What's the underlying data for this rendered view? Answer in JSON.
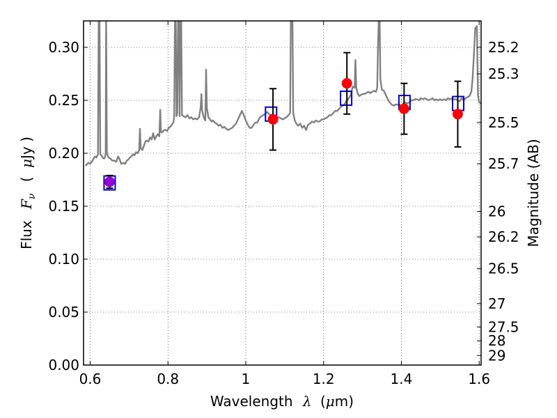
{
  "chart_data": {
    "type": "scatter",
    "xlabel": "Wavelength",
    "xlabel_symbol": "λ",
    "xlabel_unit_open": "(",
    "xlabel_unit_mu": "μ",
    "xlabel_unit_close": "m)",
    "ylabel": "Flux",
    "ylabel_symbol_F": "F",
    "ylabel_symbol_sub": "ν",
    "ylabel_unit_open": "(",
    "ylabel_unit_mu": "μ",
    "ylabel_unit_rest": "Jy )",
    "y2label": "Magnitude (AB)",
    "xlim": [
      0.583,
      1.605
    ],
    "ylim": [
      0.0,
      0.325
    ],
    "grid": true,
    "xticks": [
      {
        "value": 0.6,
        "label": "0.6"
      },
      {
        "value": 0.8,
        "label": "0.8"
      },
      {
        "value": 1.0,
        "label": "1"
      },
      {
        "value": 1.2,
        "label": "1.2"
      },
      {
        "value": 1.4,
        "label": "1.4"
      },
      {
        "value": 1.6,
        "label": "1.6"
      }
    ],
    "yticks": [
      {
        "value": 0.0,
        "label": "0.00"
      },
      {
        "value": 0.05,
        "label": "0.05"
      },
      {
        "value": 0.1,
        "label": "0.10"
      },
      {
        "value": 0.15,
        "label": "0.15"
      },
      {
        "value": 0.2,
        "label": "0.20"
      },
      {
        "value": 0.25,
        "label": "0.25"
      },
      {
        "value": 0.3,
        "label": "0.30"
      }
    ],
    "mag_ticks": [
      {
        "label": "25.2",
        "flux": 0.3
      },
      {
        "label": "25.3",
        "flux": 0.275
      },
      {
        "label": "25.5",
        "flux": 0.229
      },
      {
        "label": "25.7",
        "flux": 0.19
      },
      {
        "label": "26",
        "flux": 0.145
      },
      {
        "label": "26.2",
        "flux": 0.121
      },
      {
        "label": "26.5",
        "flux": 0.091
      },
      {
        "label": "27",
        "flux": 0.058
      },
      {
        "label": "27.5",
        "flux": 0.036
      },
      {
        "label": "28",
        "flux": 0.023
      },
      {
        "label": "29",
        "flux": 0.009
      }
    ],
    "series": [
      {
        "kind": "model_spectrum",
        "color": "#808080",
        "points": [
          [
            0.588,
            0.188
          ],
          [
            0.595,
            0.191
          ],
          [
            0.6,
            0.19
          ],
          [
            0.606,
            0.193
          ],
          [
            0.612,
            0.197
          ],
          [
            0.616,
            0.196
          ],
          [
            0.62,
            0.199
          ],
          [
            0.622,
            0.33
          ],
          [
            0.624,
            0.33
          ],
          [
            0.626,
            0.199
          ],
          [
            0.629,
            0.198
          ],
          [
            0.632,
            0.196
          ],
          [
            0.635,
            0.195
          ],
          [
            0.638,
            0.196
          ],
          [
            0.64,
            0.2
          ],
          [
            0.641,
            0.33
          ],
          [
            0.643,
            0.2
          ],
          [
            0.647,
            0.196
          ],
          [
            0.652,
            0.195
          ],
          [
            0.657,
            0.193
          ],
          [
            0.662,
            0.193
          ],
          [
            0.667,
            0.192
          ],
          [
            0.672,
            0.197
          ],
          [
            0.676,
            0.194
          ],
          [
            0.68,
            0.19
          ],
          [
            0.685,
            0.191
          ],
          [
            0.69,
            0.19
          ],
          [
            0.694,
            0.193
          ],
          [
            0.698,
            0.194
          ],
          [
            0.702,
            0.196
          ],
          [
            0.706,
            0.197
          ],
          [
            0.71,
            0.199
          ],
          [
            0.714,
            0.198
          ],
          [
            0.718,
            0.201
          ],
          [
            0.722,
            0.2
          ],
          [
            0.726,
            0.203
          ],
          [
            0.728,
            0.223
          ],
          [
            0.73,
            0.205
          ],
          [
            0.734,
            0.203
          ],
          [
            0.738,
            0.207
          ],
          [
            0.742,
            0.211
          ],
          [
            0.746,
            0.212
          ],
          [
            0.75,
            0.211
          ],
          [
            0.754,
            0.215
          ],
          [
            0.758,
            0.213
          ],
          [
            0.762,
            0.219
          ],
          [
            0.766,
            0.213
          ],
          [
            0.77,
            0.216
          ],
          [
            0.774,
            0.218
          ],
          [
            0.778,
            0.216
          ],
          [
            0.78,
            0.241
          ],
          [
            0.782,
            0.22
          ],
          [
            0.786,
            0.22
          ],
          [
            0.79,
            0.222
          ],
          [
            0.794,
            0.222
          ],
          [
            0.798,
            0.221
          ],
          [
            0.802,
            0.224
          ],
          [
            0.806,
            0.225
          ],
          [
            0.81,
            0.227
          ],
          [
            0.814,
            0.229
          ],
          [
            0.816,
            0.235
          ],
          [
            0.818,
            0.33
          ],
          [
            0.82,
            0.33
          ],
          [
            0.822,
            0.235
          ],
          [
            0.824,
            0.238
          ],
          [
            0.826,
            0.33
          ],
          [
            0.828,
            0.33
          ],
          [
            0.83,
            0.235
          ],
          [
            0.832,
            0.33
          ],
          [
            0.834,
            0.33
          ],
          [
            0.836,
            0.236
          ],
          [
            0.84,
            0.235
          ],
          [
            0.845,
            0.234
          ],
          [
            0.85,
            0.236
          ],
          [
            0.855,
            0.233
          ],
          [
            0.86,
            0.234
          ],
          [
            0.865,
            0.232
          ],
          [
            0.87,
            0.233
          ],
          [
            0.875,
            0.232
          ],
          [
            0.88,
            0.234
          ],
          [
            0.884,
            0.243
          ],
          [
            0.886,
            0.256
          ],
          [
            0.888,
            0.24
          ],
          [
            0.892,
            0.234
          ],
          [
            0.896,
            0.231
          ],
          [
            0.898,
            0.279
          ],
          [
            0.9,
            0.243
          ],
          [
            0.904,
            0.234
          ],
          [
            0.908,
            0.232
          ],
          [
            0.912,
            0.23
          ],
          [
            0.916,
            0.231
          ],
          [
            0.92,
            0.229
          ],
          [
            0.925,
            0.228
          ],
          [
            0.93,
            0.226
          ],
          [
            0.935,
            0.227
          ],
          [
            0.94,
            0.224
          ],
          [
            0.945,
            0.225
          ],
          [
            0.95,
            0.223
          ],
          [
            0.955,
            0.222
          ],
          [
            0.96,
            0.223
          ],
          [
            0.965,
            0.224
          ],
          [
            0.97,
            0.226
          ],
          [
            0.975,
            0.228
          ],
          [
            0.98,
            0.232
          ],
          [
            0.985,
            0.236
          ],
          [
            0.99,
            0.24
          ],
          [
            0.995,
            0.236
          ],
          [
            1.0,
            0.231
          ],
          [
            1.005,
            0.227
          ],
          [
            1.01,
            0.224
          ],
          [
            1.015,
            0.224
          ],
          [
            1.02,
            0.227
          ],
          [
            1.025,
            0.229
          ],
          [
            1.03,
            0.229
          ],
          [
            1.035,
            0.233
          ],
          [
            1.04,
            0.235
          ],
          [
            1.045,
            0.236
          ],
          [
            1.05,
            0.237
          ],
          [
            1.055,
            0.239
          ],
          [
            1.06,
            0.237
          ],
          [
            1.065,
            0.236
          ],
          [
            1.07,
            0.237
          ],
          [
            1.075,
            0.235
          ],
          [
            1.08,
            0.234
          ],
          [
            1.085,
            0.234
          ],
          [
            1.09,
            0.233
          ],
          [
            1.095,
            0.232
          ],
          [
            1.1,
            0.233
          ],
          [
            1.105,
            0.234
          ],
          [
            1.11,
            0.236
          ],
          [
            1.114,
            0.238
          ],
          [
            1.116,
            0.33
          ],
          [
            1.118,
            0.33
          ],
          [
            1.12,
            0.33
          ],
          [
            1.122,
            0.238
          ],
          [
            1.126,
            0.231
          ],
          [
            1.13,
            0.228
          ],
          [
            1.135,
            0.226
          ],
          [
            1.14,
            0.228
          ],
          [
            1.145,
            0.224
          ],
          [
            1.15,
            0.226
          ],
          [
            1.155,
            0.222
          ],
          [
            1.16,
            0.227
          ],
          [
            1.165,
            0.228
          ],
          [
            1.17,
            0.23
          ],
          [
            1.175,
            0.229
          ],
          [
            1.18,
            0.231
          ],
          [
            1.185,
            0.23
          ],
          [
            1.19,
            0.23
          ],
          [
            1.195,
            0.232
          ],
          [
            1.2,
            0.232
          ],
          [
            1.205,
            0.233
          ],
          [
            1.21,
            0.234
          ],
          [
            1.215,
            0.236
          ],
          [
            1.22,
            0.236
          ],
          [
            1.225,
            0.238
          ],
          [
            1.23,
            0.24
          ],
          [
            1.235,
            0.24
          ],
          [
            1.24,
            0.242
          ],
          [
            1.245,
            0.244
          ],
          [
            1.25,
            0.245
          ],
          [
            1.255,
            0.247
          ],
          [
            1.26,
            0.25
          ],
          [
            1.265,
            0.252
          ],
          [
            1.27,
            0.255
          ],
          [
            1.275,
            0.263
          ],
          [
            1.28,
            0.262
          ],
          [
            1.282,
            0.288
          ],
          [
            1.284,
            0.262
          ],
          [
            1.288,
            0.256
          ],
          [
            1.292,
            0.254
          ],
          [
            1.296,
            0.255
          ],
          [
            1.3,
            0.256
          ],
          [
            1.305,
            0.256
          ],
          [
            1.31,
            0.257
          ],
          [
            1.315,
            0.258
          ],
          [
            1.32,
            0.257
          ],
          [
            1.325,
            0.258
          ],
          [
            1.33,
            0.259
          ],
          [
            1.335,
            0.258
          ],
          [
            1.338,
            0.262
          ],
          [
            1.34,
            0.3
          ],
          [
            1.342,
            0.33
          ],
          [
            1.344,
            0.33
          ],
          [
            1.346,
            0.27
          ],
          [
            1.348,
            0.265
          ],
          [
            1.35,
            0.26
          ],
          [
            1.355,
            0.259
          ],
          [
            1.36,
            0.255
          ],
          [
            1.365,
            0.251
          ],
          [
            1.37,
            0.248
          ],
          [
            1.375,
            0.246
          ],
          [
            1.38,
            0.245
          ],
          [
            1.385,
            0.246
          ],
          [
            1.39,
            0.246
          ],
          [
            1.395,
            0.246
          ],
          [
            1.4,
            0.245
          ],
          [
            1.405,
            0.247
          ],
          [
            1.41,
            0.248
          ],
          [
            1.415,
            0.247
          ],
          [
            1.42,
            0.248
          ],
          [
            1.425,
            0.25
          ],
          [
            1.43,
            0.25
          ],
          [
            1.435,
            0.251
          ],
          [
            1.44,
            0.251
          ],
          [
            1.445,
            0.25
          ],
          [
            1.45,
            0.252
          ],
          [
            1.455,
            0.251
          ],
          [
            1.46,
            0.252
          ],
          [
            1.465,
            0.251
          ],
          [
            1.47,
            0.25
          ],
          [
            1.475,
            0.251
          ],
          [
            1.48,
            0.252
          ],
          [
            1.485,
            0.25
          ],
          [
            1.49,
            0.251
          ],
          [
            1.495,
            0.25
          ],
          [
            1.5,
            0.251
          ],
          [
            1.505,
            0.25
          ],
          [
            1.51,
            0.251
          ],
          [
            1.515,
            0.25
          ],
          [
            1.52,
            0.252
          ],
          [
            1.525,
            0.251
          ],
          [
            1.53,
            0.252
          ],
          [
            1.535,
            0.251
          ],
          [
            1.54,
            0.251
          ],
          [
            1.545,
            0.25
          ],
          [
            1.55,
            0.249
          ],
          [
            1.555,
            0.252
          ],
          [
            1.56,
            0.25
          ],
          [
            1.565,
            0.252
          ],
          [
            1.57,
            0.253
          ],
          [
            1.575,
            0.254
          ],
          [
            1.58,
            0.258
          ],
          [
            1.583,
            0.27
          ],
          [
            1.586,
            0.29
          ],
          [
            1.59,
            0.318
          ],
          [
            1.594,
            0.32
          ],
          [
            1.597,
            0.255
          ],
          [
            1.6,
            0.248
          ],
          [
            1.605,
            0.247
          ]
        ]
      },
      {
        "kind": "observed_photometry",
        "color": "#ff0000",
        "points": [
          {
            "x": 0.65,
            "y": 0.173,
            "err": 0.006,
            "color": "#9400d3"
          },
          {
            "x": 1.07,
            "y": 0.232,
            "err": 0.029
          },
          {
            "x": 1.26,
            "y": 0.266,
            "err": 0.029
          },
          {
            "x": 1.407,
            "y": 0.242,
            "err": 0.024
          },
          {
            "x": 1.545,
            "y": 0.237,
            "err": 0.031
          }
        ]
      },
      {
        "kind": "model_photometry",
        "color": "#0000cc",
        "points": [
          {
            "x": 0.65,
            "y": 0.172
          },
          {
            "x": 1.065,
            "y": 0.237
          },
          {
            "x": 1.258,
            "y": 0.252
          },
          {
            "x": 1.408,
            "y": 0.248
          },
          {
            "x": 1.546,
            "y": 0.247
          }
        ]
      }
    ]
  }
}
